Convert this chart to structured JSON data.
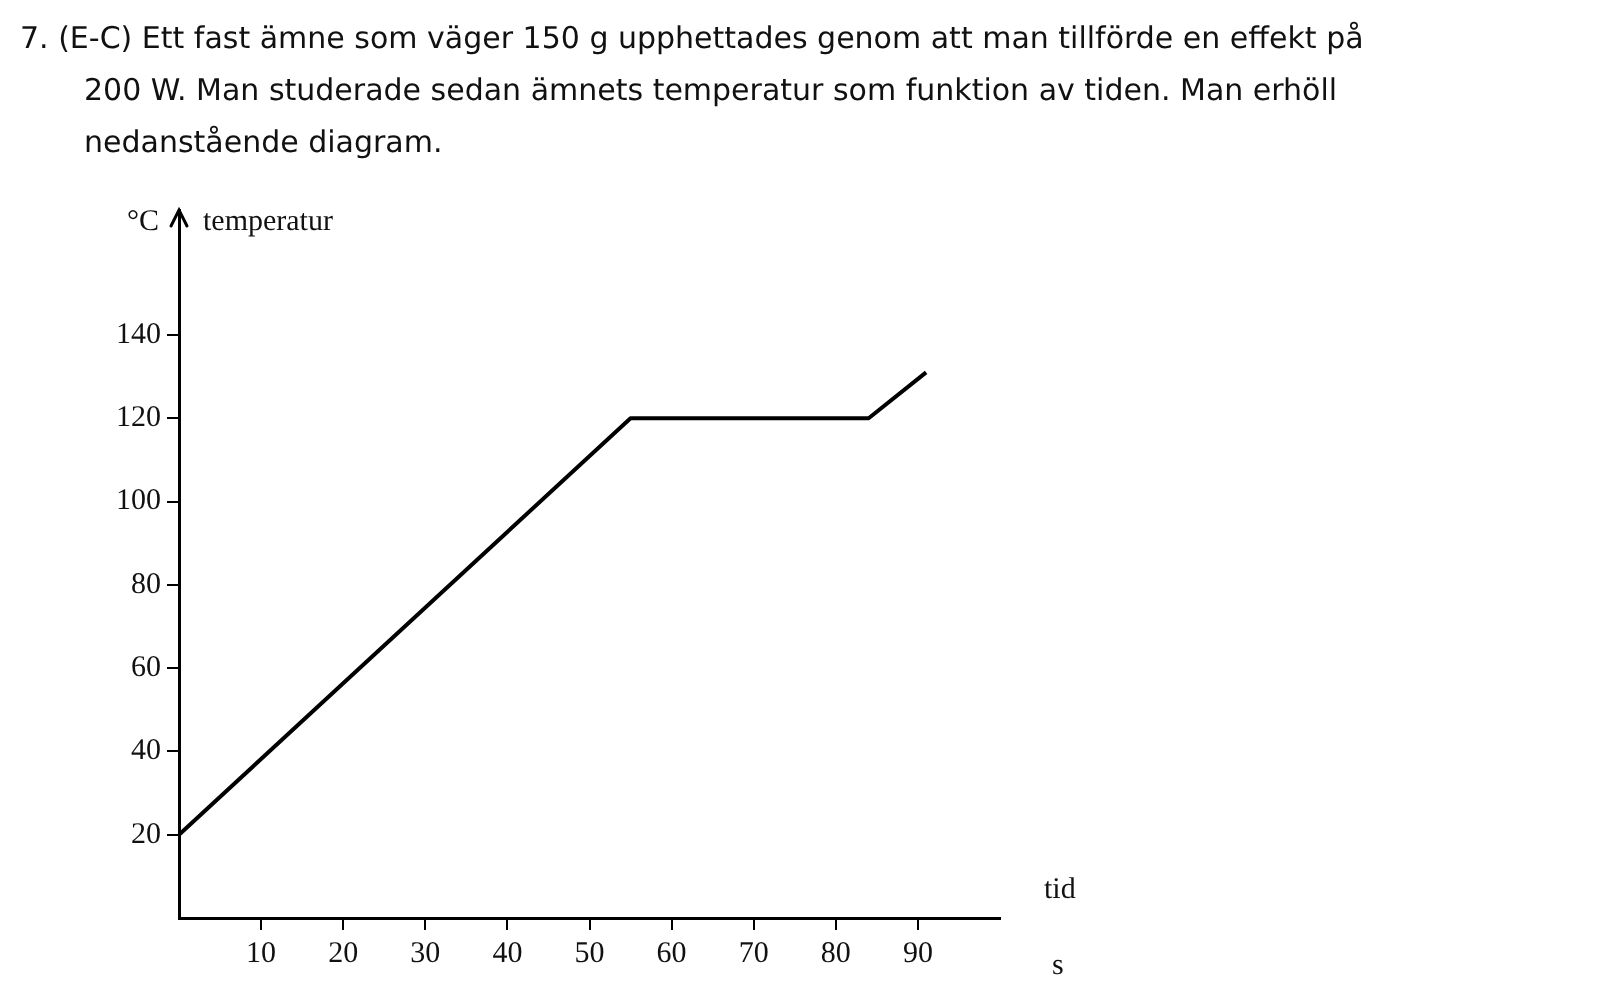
{
  "chart_data": {
    "type": "line",
    "title": "7. (E-C) Ett fast ämne som väger 150 g upphettades genom att man tillförde en effekt på 200 W. Man studerade sedan ämnets temperatur som funktion av tiden. Man erhöll nedanstående diagram.",
    "xlabel": "tid",
    "ylabel": "temperatur",
    "annotations": [
      "°C",
      "s"
    ],
    "x": [
      0,
      55,
      84,
      91
    ],
    "series": [
      {
        "color": "#000000",
        "values": [
          20,
          120,
          120,
          131
        ]
      }
    ],
    "xlim": [
      0,
      100
    ],
    "ylim": [
      0,
      170
    ],
    "xticks": [
      10,
      20,
      30,
      40,
      50,
      60,
      70,
      80,
      90
    ],
    "yticks": [
      20,
      40,
      60,
      80,
      100,
      120,
      140
    ],
    "grid": false,
    "legend": false,
    "marker": "none",
    "line_style": "solid"
  }
}
